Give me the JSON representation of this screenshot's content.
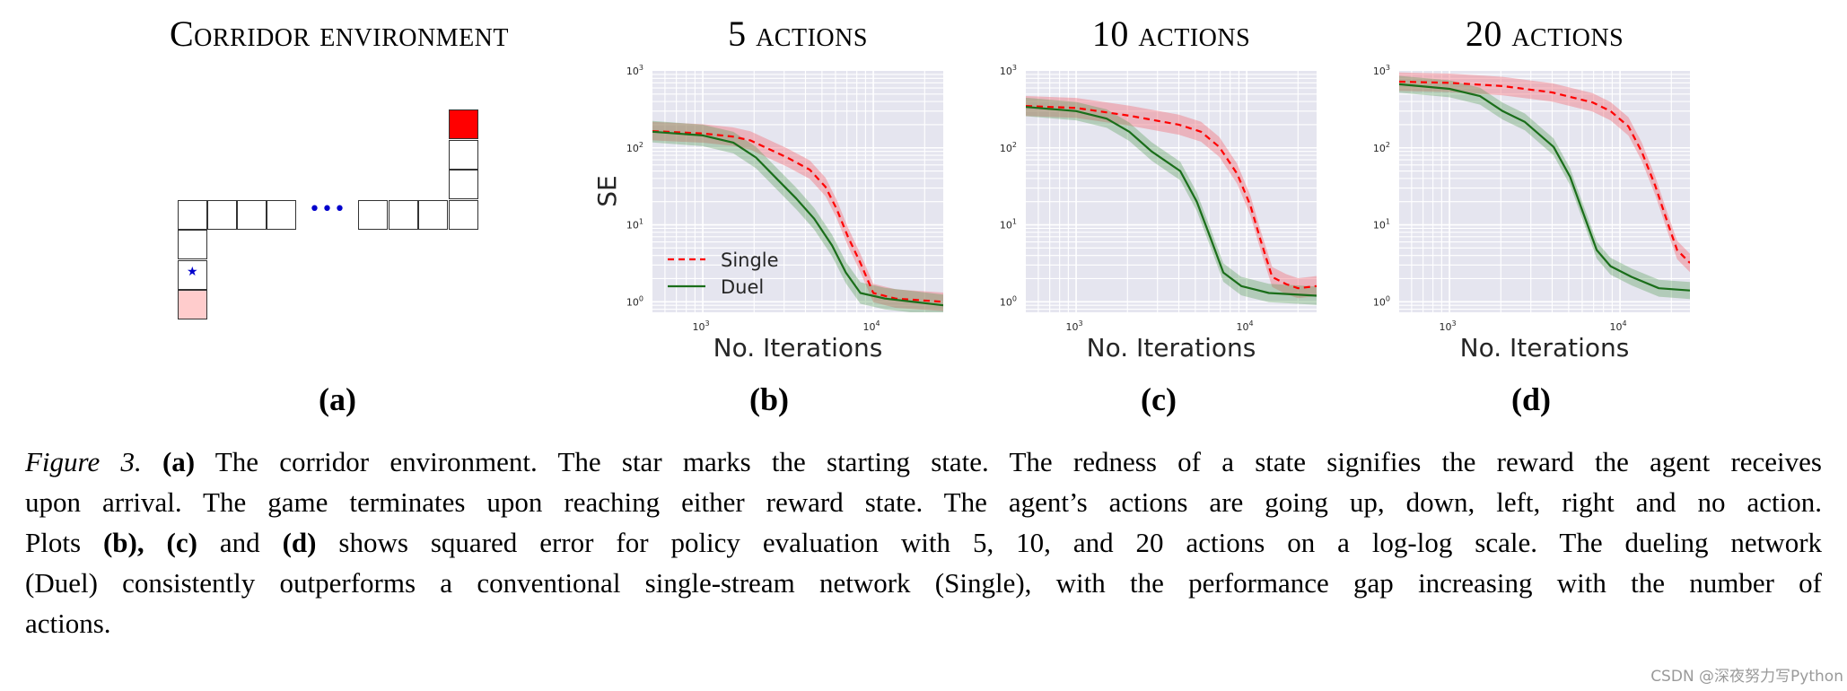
{
  "figure": {
    "panel_a": {
      "title_first": "C",
      "title_rest": "orridor environment",
      "label": "(a)",
      "start_marker": "★",
      "ellipsis": "•••",
      "colors": {
        "terminal_high": "#ff0000",
        "terminal_low": "#ffcccc",
        "marker": "#0000cc"
      }
    },
    "panel_b": {
      "title_num": "5",
      "title_word": "actions",
      "label": "(b)"
    },
    "panel_c": {
      "title_num": "10",
      "title_word": "actions",
      "label": "(c)"
    },
    "panel_d": {
      "title_num": "20",
      "title_word": "actions",
      "label": "(d)"
    },
    "ylabel": "SE",
    "xlabel": "No. Iterations",
    "legend": {
      "single": "Single",
      "duel": "Duel"
    },
    "ytick_labels": [
      "10",
      "10",
      "10",
      "10"
    ],
    "ytick_exps": [
      "3",
      "2",
      "1",
      "0"
    ],
    "xtick_labels": [
      "10",
      "10"
    ],
    "xtick_exps": [
      "3",
      "4"
    ]
  },
  "caption": {
    "fig_label": "Figure 3.",
    "lines": [
      [
        {
          "b": "(a)"
        },
        {
          "t": " The corridor environment.  The star marks the starting state.  The redness of a state signifies the reward the agent receives"
        }
      ],
      [
        {
          "t": "upon arrival.  The game terminates upon reaching either reward state.  The agent’s actions are going up, down, left, right and no action."
        }
      ],
      [
        {
          "t": "Plots "
        },
        {
          "b": "(b),"
        },
        {
          "t": " "
        },
        {
          "b": "(c)"
        },
        {
          "t": " and "
        },
        {
          "b": "(d)"
        },
        {
          "t": " shows squared error for policy evaluation with 5, 10, and 20 actions on a log-log scale.  The dueling network"
        }
      ],
      [
        {
          "t": "(Duel) consistently outperforms a conventional single-stream network (Single), with the performance gap increasing with the number of"
        }
      ],
      [
        {
          "t": "actions."
        }
      ]
    ]
  },
  "watermark": "CSDN @深夜努力写Python",
  "chart_data": [
    {
      "type": "line",
      "title": "5 actions",
      "xlabel": "No. Iterations",
      "ylabel": "SE",
      "xscale": "log",
      "yscale": "log",
      "xlim": [
        507,
        25700
      ],
      "ylim": [
        0.73,
        1000
      ],
      "grid": true,
      "legend_position": "lower left",
      "series": [
        {
          "name": "Single",
          "style": "dashed",
          "color": "#ff0000",
          "x": [
            507,
            1000,
            1500,
            1900,
            3120,
            4240,
            5250,
            6100,
            7100,
            8400,
            10000,
            13500,
            25700
          ],
          "y": [
            165,
            154,
            140,
            125,
            75,
            52,
            31,
            16,
            7,
            3.2,
            1.3,
            1.1,
            1.0
          ],
          "band": 0.12
        },
        {
          "name": "Duel",
          "style": "solid",
          "color": "#1a6e1a",
          "x": [
            507,
            1000,
            1510,
            2050,
            2770,
            3530,
            4500,
            5730,
            6900,
            8400,
            11700,
            25700
          ],
          "y": [
            162,
            145,
            117,
            75,
            38,
            22,
            12,
            5.4,
            2.4,
            1.3,
            1.1,
            0.9
          ],
          "band": 0.14
        }
      ]
    },
    {
      "type": "line",
      "title": "10 actions",
      "xlabel": "No. Iterations",
      "ylabel": "",
      "xscale": "log",
      "yscale": "log",
      "xlim": [
        507,
        25700
      ],
      "ylim": [
        0.73,
        1000
      ],
      "grid": true,
      "series": [
        {
          "name": "Single",
          "style": "dashed",
          "color": "#ff0000",
          "x": [
            507,
            1000,
            2050,
            4000,
            5400,
            6900,
            8800,
            10500,
            12100,
            14100,
            17000,
            20000,
            25700
          ],
          "y": [
            350,
            330,
            262,
            200,
            162,
            103,
            46,
            18,
            6.2,
            2.1,
            1.7,
            1.5,
            1.6
          ],
          "band": 0.13
        },
        {
          "name": "Duel",
          "style": "solid",
          "color": "#1a6e1a",
          "x": [
            507,
            1000,
            1510,
            2050,
            2770,
            4080,
            5100,
            6100,
            7300,
            9300,
            13500,
            25700
          ],
          "y": [
            340,
            300,
            240,
            162,
            90,
            50,
            20,
            7,
            2.4,
            1.6,
            1.3,
            1.2
          ],
          "band": 0.12
        }
      ]
    },
    {
      "type": "line",
      "title": "20 actions",
      "xlabel": "No. Iterations",
      "ylabel": "",
      "xscale": "log",
      "yscale": "log",
      "xlim": [
        507,
        25700
      ],
      "ylim": [
        0.73,
        1000
      ],
      "grid": true,
      "series": [
        {
          "name": "Single",
          "style": "dashed",
          "color": "#ff0000",
          "x": [
            507,
            1000,
            2050,
            4000,
            6900,
            8800,
            11200,
            13400,
            16100,
            19200,
            21600,
            25700
          ],
          "y": [
            725,
            700,
            635,
            525,
            390,
            300,
            190,
            89,
            32,
            10,
            4.7,
            3.2
          ],
          "band": 0.12
        },
        {
          "name": "Duel",
          "style": "solid",
          "color": "#1a6e1a",
          "x": [
            507,
            1000,
            1510,
            2050,
            2770,
            4080,
            5100,
            6100,
            7300,
            8800,
            11700,
            16900,
            25700
          ],
          "y": [
            670,
            585,
            470,
            300,
            217,
            103,
            42,
            14,
            4.7,
            2.9,
            2.1,
            1.5,
            1.4
          ],
          "band": 0.11
        }
      ]
    }
  ]
}
